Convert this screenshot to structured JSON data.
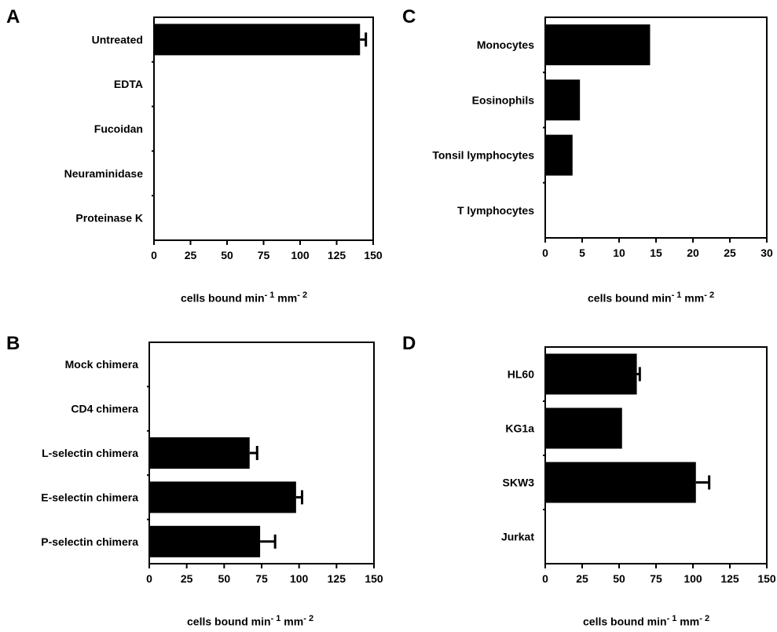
{
  "chart_data": [
    {
      "panel": "A",
      "type": "bar",
      "orientation": "horizontal",
      "categories": [
        "Untreated",
        "EDTA",
        "Fucoidan",
        "Neuraminidase",
        "Proteinase K"
      ],
      "values": [
        141,
        0,
        0,
        0,
        0
      ],
      "errors": [
        4,
        null,
        null,
        null,
        null
      ],
      "xlim": [
        0,
        150
      ],
      "xticks": [
        "0",
        "25",
        "50",
        "75",
        "100",
        "125",
        "150"
      ],
      "xlabel": {
        "main": "cells bound  min",
        "exp1": "- 1",
        "mid": " mm",
        "exp2": "- 2"
      },
      "grid": false
    },
    {
      "panel": "C",
      "type": "bar",
      "orientation": "horizontal",
      "categories": [
        "Monocytes",
        "Eosinophils",
        "Tonsil lymphocytes",
        "T lymphocytes"
      ],
      "values": [
        14.2,
        4.7,
        3.7,
        0
      ],
      "errors": [
        null,
        null,
        null,
        null
      ],
      "xlim": [
        0,
        30
      ],
      "xticks": [
        "0",
        "5",
        "10",
        "15",
        "20",
        "25",
        "30"
      ],
      "xlabel": {
        "main": "cells  bound  min",
        "exp1": "- 1",
        "mid": " mm",
        "exp2": "- 2"
      },
      "grid": false
    },
    {
      "panel": "B",
      "type": "bar",
      "orientation": "horizontal",
      "categories": [
        "Mock chimera",
        "CD4 chimera",
        "L-selectin chimera",
        "E-selectin chimera",
        "P-selectin chimera"
      ],
      "values": [
        0,
        0,
        67,
        98,
        74
      ],
      "errors": [
        null,
        null,
        5,
        4,
        10
      ],
      "xlim": [
        0,
        150
      ],
      "xticks": [
        "0",
        "25",
        "50",
        "75",
        "100",
        "125",
        "150"
      ],
      "xlabel": {
        "main": "cells  bound  min",
        "exp1": "- 1",
        "mid": " mm",
        "exp2": "- 2"
      },
      "grid": false
    },
    {
      "panel": "D",
      "type": "bar",
      "orientation": "horizontal",
      "categories": [
        "HL60",
        "KG1a",
        "SKW3",
        "Jurkat"
      ],
      "values": [
        62,
        52,
        102,
        0
      ],
      "errors": [
        2,
        null,
        9,
        null
      ],
      "xlim": [
        0,
        150
      ],
      "xticks": [
        "0",
        "25",
        "50",
        "75",
        "100",
        "125",
        "150"
      ],
      "xlabel": {
        "main": "cells  bound  min",
        "exp1": "- 1",
        "mid": " mm",
        "exp2": "- 2"
      },
      "grid": false
    }
  ],
  "bar_color": "#000000"
}
